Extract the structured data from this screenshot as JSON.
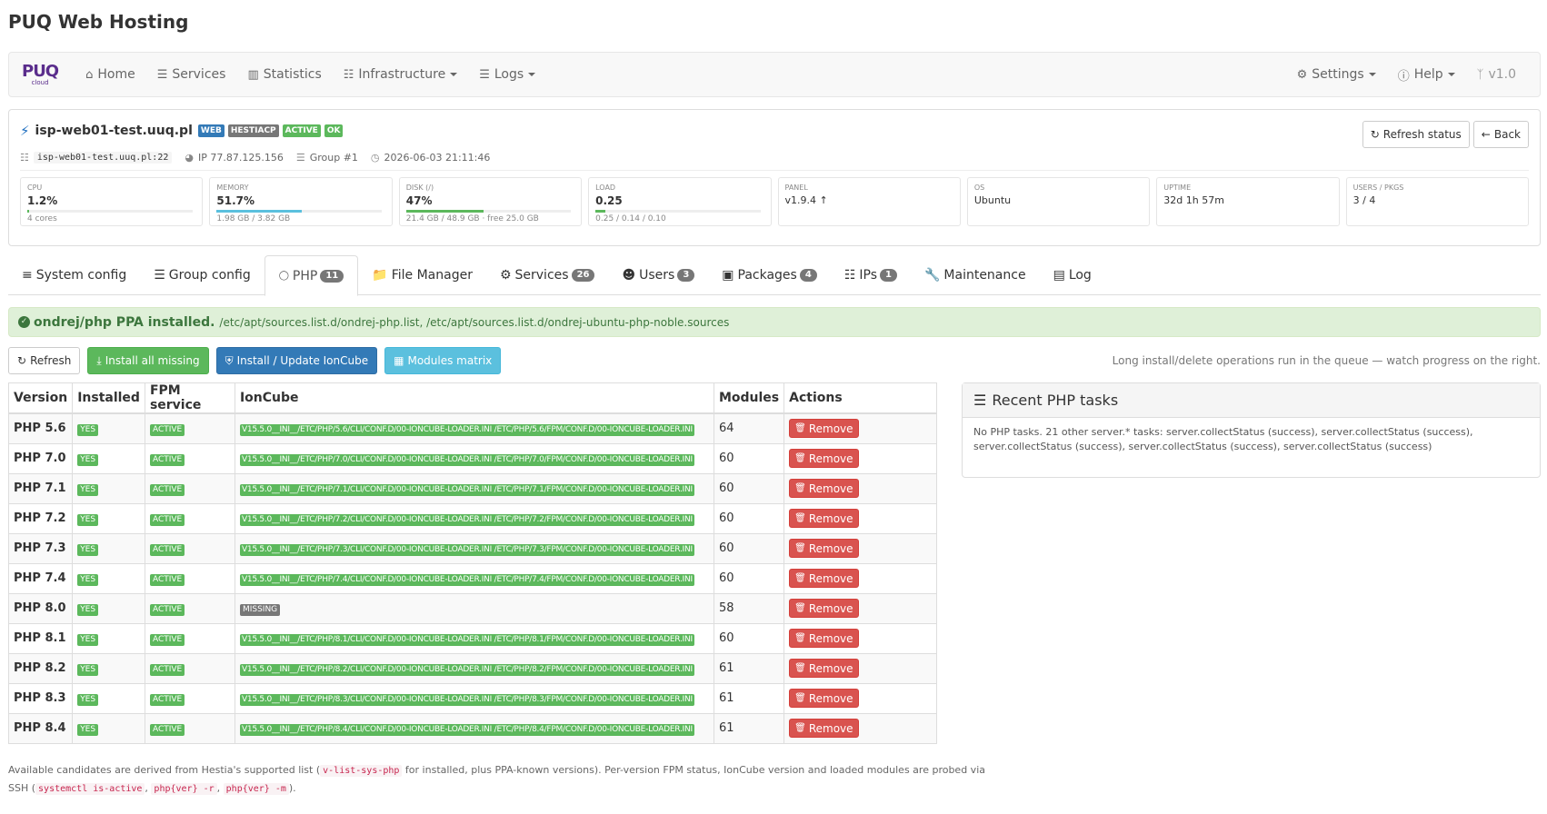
{
  "app_title": "PUQ Web Hosting",
  "navbar": {
    "brand_top": "PUQ",
    "brand_bottom": "cloud",
    "items": [
      {
        "label": "Home"
      },
      {
        "label": "Services"
      },
      {
        "label": "Statistics"
      },
      {
        "label": "Infrastructure"
      },
      {
        "label": "Logs"
      }
    ],
    "right": [
      {
        "label": "Settings"
      },
      {
        "label": "Help"
      },
      {
        "label": "v1.0"
      }
    ]
  },
  "server": {
    "hostname": "isp-web01-test.uuq.pl",
    "labels": [
      "WEB",
      "HESTIACP",
      "ACTIVE",
      "OK"
    ],
    "refresh_label": "Refresh status",
    "back_label": "Back",
    "ssh": "isp-web01-test.uuq.pl:22",
    "ip": "IP 77.87.125.156",
    "group": "Group #1",
    "time": "2026-06-03 21:11:46",
    "stats": [
      {
        "label": "CPU",
        "value": "1.2%",
        "sub": "4 cores",
        "fill": 0.012,
        "color": "#5cb85c"
      },
      {
        "label": "MEMORY",
        "value": "51.7%",
        "sub": "1.98 GB / 3.82 GB",
        "fill": 0.517,
        "color": "#5bc0de"
      },
      {
        "label": "DISK (/)",
        "value": "47%",
        "sub": "21.4 GB / 48.9 GB · free 25.0 GB",
        "fill": 0.47,
        "color": "#5cb85c"
      },
      {
        "label": "LOAD",
        "value": "0.25",
        "sub": "0.25 / 0.14 / 0.10",
        "fill": 0.0625,
        "color": "#5cb85c"
      },
      {
        "label": "PANEL",
        "value": "v1.9.4 ↑"
      },
      {
        "label": "OS",
        "value": "Ubuntu"
      },
      {
        "label": "UPTIME",
        "value": "32d 1h 57m"
      },
      {
        "label": "USERS / PKGS",
        "value": "3 / 4"
      }
    ]
  },
  "tabs": [
    {
      "label": "System config",
      "badge": ""
    },
    {
      "label": "Group config",
      "badge": ""
    },
    {
      "label": "PHP",
      "badge": "11"
    },
    {
      "label": "File Manager",
      "badge": ""
    },
    {
      "label": "Services",
      "badge": "26"
    },
    {
      "label": "Users",
      "badge": "3"
    },
    {
      "label": "Packages",
      "badge": "4"
    },
    {
      "label": "IPs",
      "badge": "1"
    },
    {
      "label": "Maintenance",
      "badge": ""
    },
    {
      "label": "Log",
      "badge": ""
    }
  ],
  "alert": {
    "title": "ondrej/php PPA installed.",
    "text": "/etc/apt/sources.list.d/ondrej-php.list, /etc/apt/sources.list.d/ondrej-ubuntu-php-noble.sources"
  },
  "toolbar": {
    "refresh": "Refresh",
    "install_missing": "Install all missing",
    "ioncube": "Install / Update IonCube",
    "matrix": "Modules matrix",
    "hint": "Long install/delete operations run in the queue — watch progress on the right."
  },
  "table": {
    "headers": [
      "Version",
      "Installed",
      "FPM service",
      "IonCube",
      "Modules",
      "Actions"
    ],
    "remove_label": "Remove",
    "rows": [
      {
        "version": "PHP 5.6",
        "installed": "YES",
        "fpm": "ACTIVE",
        "ioncube": "V15.5.0__INI__/ETC/PHP/5.6/CLI/CONF.D/00-IONCUBE-LOADER.INI /ETC/PHP/5.6/FPM/CONF.D/00-IONCUBE-LOADER.INI",
        "missing": false,
        "modules": "64"
      },
      {
        "version": "PHP 7.0",
        "installed": "YES",
        "fpm": "ACTIVE",
        "ioncube": "V15.5.0__INI__/ETC/PHP/7.0/CLI/CONF.D/00-IONCUBE-LOADER.INI /ETC/PHP/7.0/FPM/CONF.D/00-IONCUBE-LOADER.INI",
        "missing": false,
        "modules": "60"
      },
      {
        "version": "PHP 7.1",
        "installed": "YES",
        "fpm": "ACTIVE",
        "ioncube": "V15.5.0__INI__/ETC/PHP/7.1/CLI/CONF.D/00-IONCUBE-LOADER.INI /ETC/PHP/7.1/FPM/CONF.D/00-IONCUBE-LOADER.INI",
        "missing": false,
        "modules": "60"
      },
      {
        "version": "PHP 7.2",
        "installed": "YES",
        "fpm": "ACTIVE",
        "ioncube": "V15.5.0__INI__/ETC/PHP/7.2/CLI/CONF.D/00-IONCUBE-LOADER.INI /ETC/PHP/7.2/FPM/CONF.D/00-IONCUBE-LOADER.INI",
        "missing": false,
        "modules": "60"
      },
      {
        "version": "PHP 7.3",
        "installed": "YES",
        "fpm": "ACTIVE",
        "ioncube": "V15.5.0__INI__/ETC/PHP/7.3/CLI/CONF.D/00-IONCUBE-LOADER.INI /ETC/PHP/7.3/FPM/CONF.D/00-IONCUBE-LOADER.INI",
        "missing": false,
        "modules": "60"
      },
      {
        "version": "PHP 7.4",
        "installed": "YES",
        "fpm": "ACTIVE",
        "ioncube": "V15.5.0__INI__/ETC/PHP/7.4/CLI/CONF.D/00-IONCUBE-LOADER.INI /ETC/PHP/7.4/FPM/CONF.D/00-IONCUBE-LOADER.INI",
        "missing": false,
        "modules": "60"
      },
      {
        "version": "PHP 8.0",
        "installed": "YES",
        "fpm": "ACTIVE",
        "ioncube": "MISSING",
        "missing": true,
        "modules": "58"
      },
      {
        "version": "PHP 8.1",
        "installed": "YES",
        "fpm": "ACTIVE",
        "ioncube": "V15.5.0__INI__/ETC/PHP/8.1/CLI/CONF.D/00-IONCUBE-LOADER.INI /ETC/PHP/8.1/FPM/CONF.D/00-IONCUBE-LOADER.INI",
        "missing": false,
        "modules": "60"
      },
      {
        "version": "PHP 8.2",
        "installed": "YES",
        "fpm": "ACTIVE",
        "ioncube": "V15.5.0__INI__/ETC/PHP/8.2/CLI/CONF.D/00-IONCUBE-LOADER.INI /ETC/PHP/8.2/FPM/CONF.D/00-IONCUBE-LOADER.INI",
        "missing": false,
        "modules": "61"
      },
      {
        "version": "PHP 8.3",
        "installed": "YES",
        "fpm": "ACTIVE",
        "ioncube": "V15.5.0__INI__/ETC/PHP/8.3/CLI/CONF.D/00-IONCUBE-LOADER.INI /ETC/PHP/8.3/FPM/CONF.D/00-IONCUBE-LOADER.INI",
        "missing": false,
        "modules": "61"
      },
      {
        "version": "PHP 8.4",
        "installed": "YES",
        "fpm": "ACTIVE",
        "ioncube": "V15.5.0__INI__/ETC/PHP/8.4/CLI/CONF.D/00-IONCUBE-LOADER.INI /ETC/PHP/8.4/FPM/CONF.D/00-IONCUBE-LOADER.INI",
        "missing": false,
        "modules": "61"
      }
    ]
  },
  "tasks": {
    "title": "Recent PHP tasks",
    "body": "No PHP tasks. 21 other server.* tasks: server.collectStatus (success), server.collectStatus (success), server.collectStatus (success), server.collectStatus (success), server.collectStatus (success)"
  },
  "footer": {
    "t1": "Available candidates are derived from Hestia's supported list (",
    "c1": "v-list-sys-php",
    "t2": " for installed, plus PPA-known versions). Per-version FPM status, IonCube version and loaded modules are probed via SSH (",
    "c2": "systemctl is-active",
    "t3": ", ",
    "c3": "php{ver} -r",
    "t4": ", ",
    "c4": "php{ver} -m",
    "t5": ")."
  }
}
